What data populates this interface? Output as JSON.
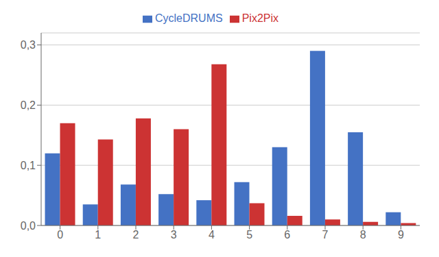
{
  "chart_data": {
    "type": "bar",
    "categories": [
      "0",
      "1",
      "2",
      "3",
      "4",
      "5",
      "6",
      "7",
      "8",
      "9"
    ],
    "series": [
      {
        "name": "CycleDRUMS",
        "color": "#4472C4",
        "values": [
          0.12,
          0.035,
          0.068,
          0.052,
          0.042,
          0.072,
          0.13,
          0.29,
          0.155,
          0.022
        ]
      },
      {
        "name": "Pix2Pix",
        "color": "#CC3333",
        "values": [
          0.17,
          0.143,
          0.178,
          0.16,
          0.268,
          0.037,
          0.016,
          0.01,
          0.006,
          0.004
        ]
      }
    ],
    "ylim": [
      0,
      0.32
    ],
    "yticks": [
      {
        "value": 0.0,
        "label": "0,0"
      },
      {
        "value": 0.1,
        "label": "0,1"
      },
      {
        "value": 0.2,
        "label": "0,2"
      },
      {
        "value": 0.3,
        "label": "0,3"
      }
    ],
    "grid": true,
    "legend": "top"
  }
}
